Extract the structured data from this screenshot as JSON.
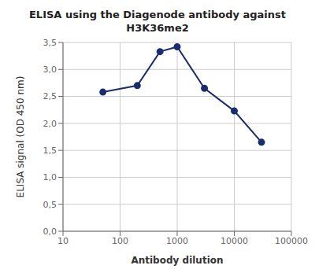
{
  "chart_data": {
    "type": "line",
    "title": "ELISA using the Diagenode antibody against\nH3K36me2",
    "xlabel": "Antibody dilution",
    "ylabel": "ELISA signal (OD 450 nm)",
    "x": [
      50,
      200,
      500,
      1000,
      3000,
      10000,
      30000
    ],
    "values": [
      2.58,
      2.7,
      3.33,
      3.42,
      2.65,
      2.23,
      1.65
    ],
    "xlim": [
      10,
      100000
    ],
    "xticks": [
      10,
      100,
      1000,
      10000,
      100000
    ],
    "ylim": [
      0.0,
      3.5
    ],
    "yticks": [
      {
        "value": 0.0,
        "label": "0,0"
      },
      {
        "value": 0.5,
        "label": "0,5"
      },
      {
        "value": 1.0,
        "label": "1,0"
      },
      {
        "value": 1.5,
        "label": "1,5"
      },
      {
        "value": 2.0,
        "label": "2,0"
      },
      {
        "value": 2.5,
        "label": "2,5"
      },
      {
        "value": 3.0,
        "label": "3,0"
      },
      {
        "value": 3.5,
        "label": "3,5"
      }
    ],
    "log": "x",
    "grid": true,
    "color": "#1a2d6e",
    "marker": "circle"
  }
}
